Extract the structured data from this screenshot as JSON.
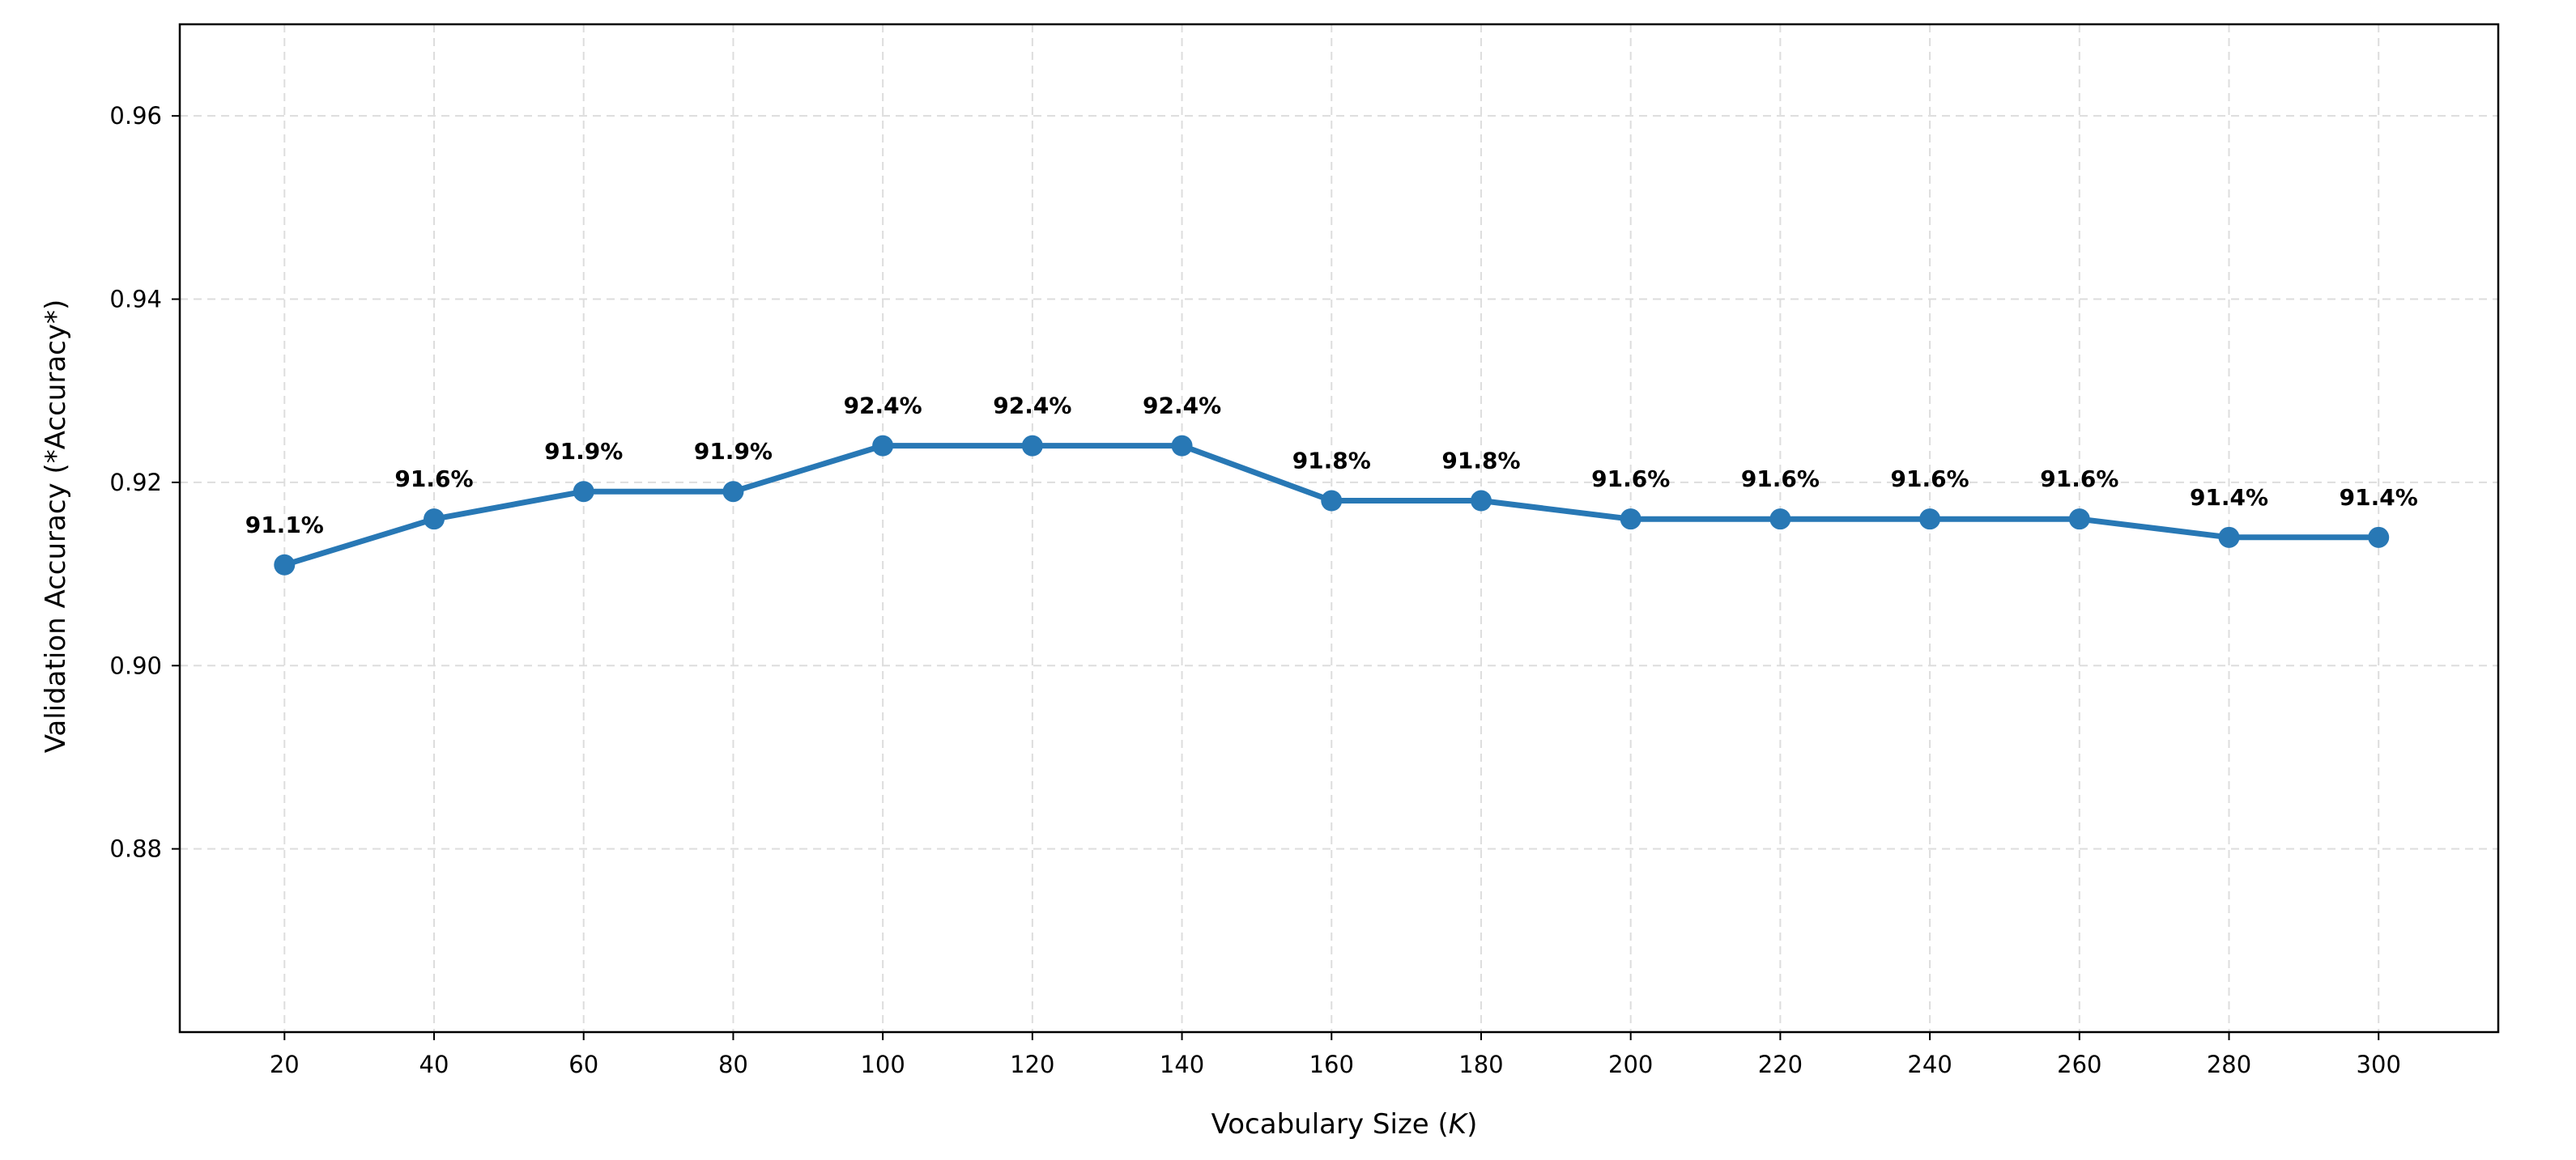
{
  "chart_data": {
    "type": "line",
    "title": "",
    "xlabel": "Vocabulary Size (",
    "xlabel_var": "K",
    "xlabel_suffix": ")",
    "ylabel": "Validation Accuracy (*Accuracy*)",
    "x": [
      20,
      40,
      60,
      80,
      100,
      120,
      140,
      160,
      180,
      200,
      220,
      240,
      260,
      280,
      300
    ],
    "y": [
      0.911,
      0.916,
      0.919,
      0.919,
      0.924,
      0.924,
      0.924,
      0.918,
      0.918,
      0.916,
      0.916,
      0.916,
      0.916,
      0.914,
      0.914
    ],
    "data_labels": [
      "91.1%",
      "91.6%",
      "91.9%",
      "91.9%",
      "92.4%",
      "92.4%",
      "92.4%",
      "91.8%",
      "91.8%",
      "91.6%",
      "91.6%",
      "91.6%",
      "91.6%",
      "91.4%",
      "91.4%"
    ],
    "xticks": [
      20,
      40,
      60,
      80,
      100,
      120,
      140,
      160,
      180,
      200,
      220,
      240,
      260,
      280,
      300
    ],
    "xtick_labels": [
      "20",
      "40",
      "60",
      "80",
      "100",
      "120",
      "140",
      "160",
      "180",
      "200",
      "220",
      "240",
      "260",
      "280",
      "300"
    ],
    "yticks": [
      0.88,
      0.9,
      0.92,
      0.94,
      0.96
    ],
    "ytick_labels": [
      "0.88",
      "0.90",
      "0.92",
      "0.94",
      "0.96"
    ],
    "xlim": [
      6,
      316
    ],
    "ylim": [
      0.86,
      0.97
    ],
    "grid": true,
    "legend": "none",
    "line_color": "#2878b5",
    "grid_color": "#dddddd",
    "axis_color": "#000000"
  }
}
